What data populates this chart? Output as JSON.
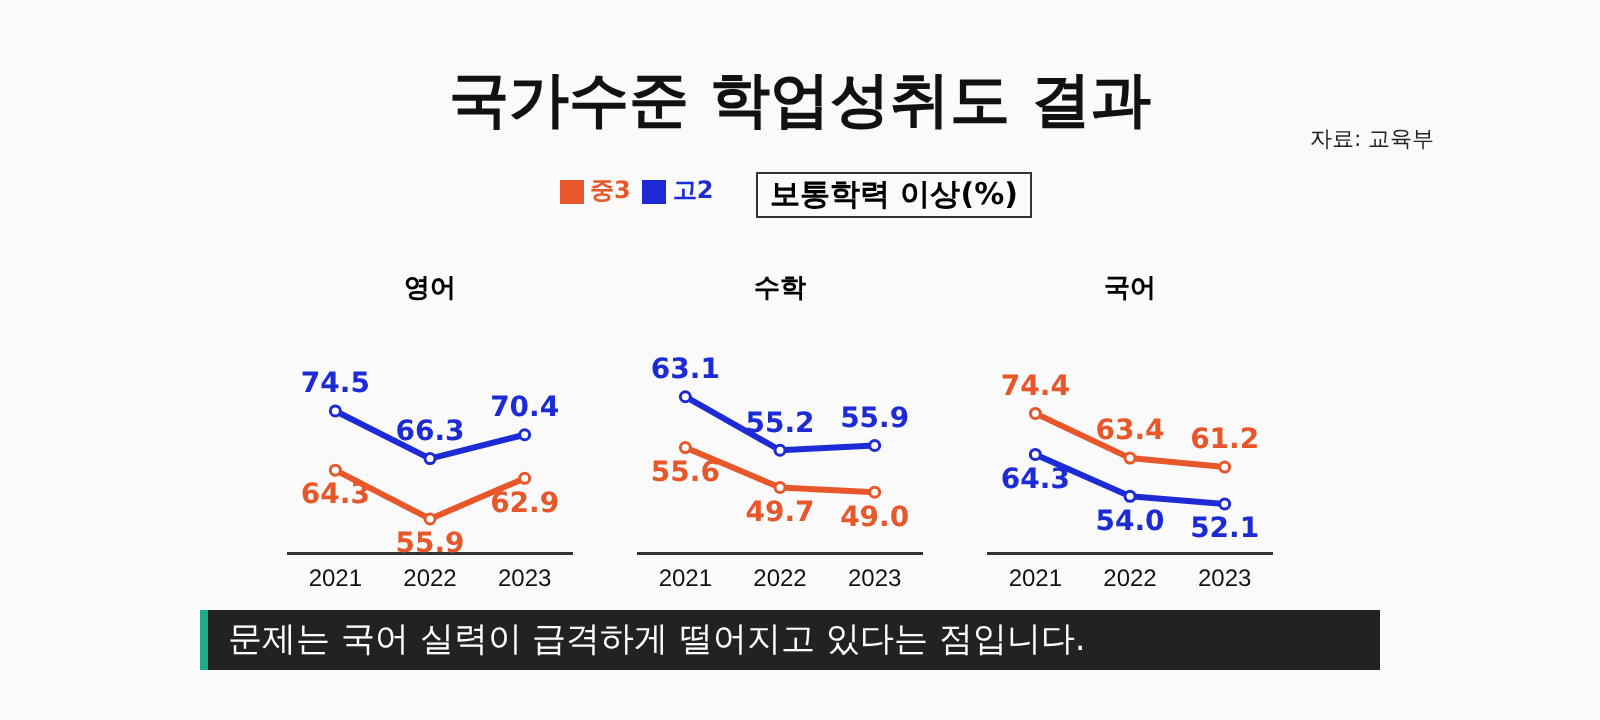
{
  "chart_data": [
    {
      "type": "other",
      "title": "국가수준 학업성취도 결과",
      "subtitle": "보통학력 이상(%)",
      "annotations": [
        "자료: 교육부",
        "문제는 국어 실력이 급격하게 떨어지고 있다는 점입니다."
      ]
    },
    {
      "type": "line",
      "title": "영어",
      "categories": [
        "2021",
        "2022",
        "2023"
      ],
      "legend": "top",
      "marker": "circle",
      "series": [
        {
          "name": "중3",
          "color": "#e8572a",
          "values": [
            64.3,
            55.9,
            62.9
          ],
          "value_labels": [
            "64.3",
            "55.9",
            "62.9"
          ]
        },
        {
          "name": "고2",
          "color": "#1c2bd6",
          "values": [
            74.5,
            66.3,
            70.4
          ],
          "value_labels": [
            "74.5",
            "66.3",
            "70.4"
          ]
        }
      ]
    },
    {
      "type": "line",
      "title": "수학",
      "categories": [
        "2021",
        "2022",
        "2023"
      ],
      "marker": "circle",
      "series": [
        {
          "color": "#e8572a",
          "values": [
            55.6,
            49.7,
            49.0
          ],
          "value_labels": [
            "55.6",
            "49.7",
            "49.0"
          ]
        },
        {
          "color": "#1c2bd6",
          "values": [
            63.1,
            55.2,
            55.9
          ],
          "value_labels": [
            "63.1",
            "55.2",
            "55.9"
          ]
        }
      ]
    },
    {
      "type": "line",
      "title": "국어",
      "categories": [
        "2021",
        "2022",
        "2023"
      ],
      "marker": "circle",
      "series": [
        {
          "color": "#e8572a",
          "values": [
            74.4,
            63.4,
            61.2
          ],
          "value_labels": [
            "74.4",
            "63.4",
            "61.2"
          ]
        },
        {
          "color": "#1c2bd6",
          "values": [
            64.3,
            54.0,
            52.1
          ],
          "value_labels": [
            "64.3",
            "54.0",
            "52.1"
          ]
        }
      ]
    }
  ]
}
